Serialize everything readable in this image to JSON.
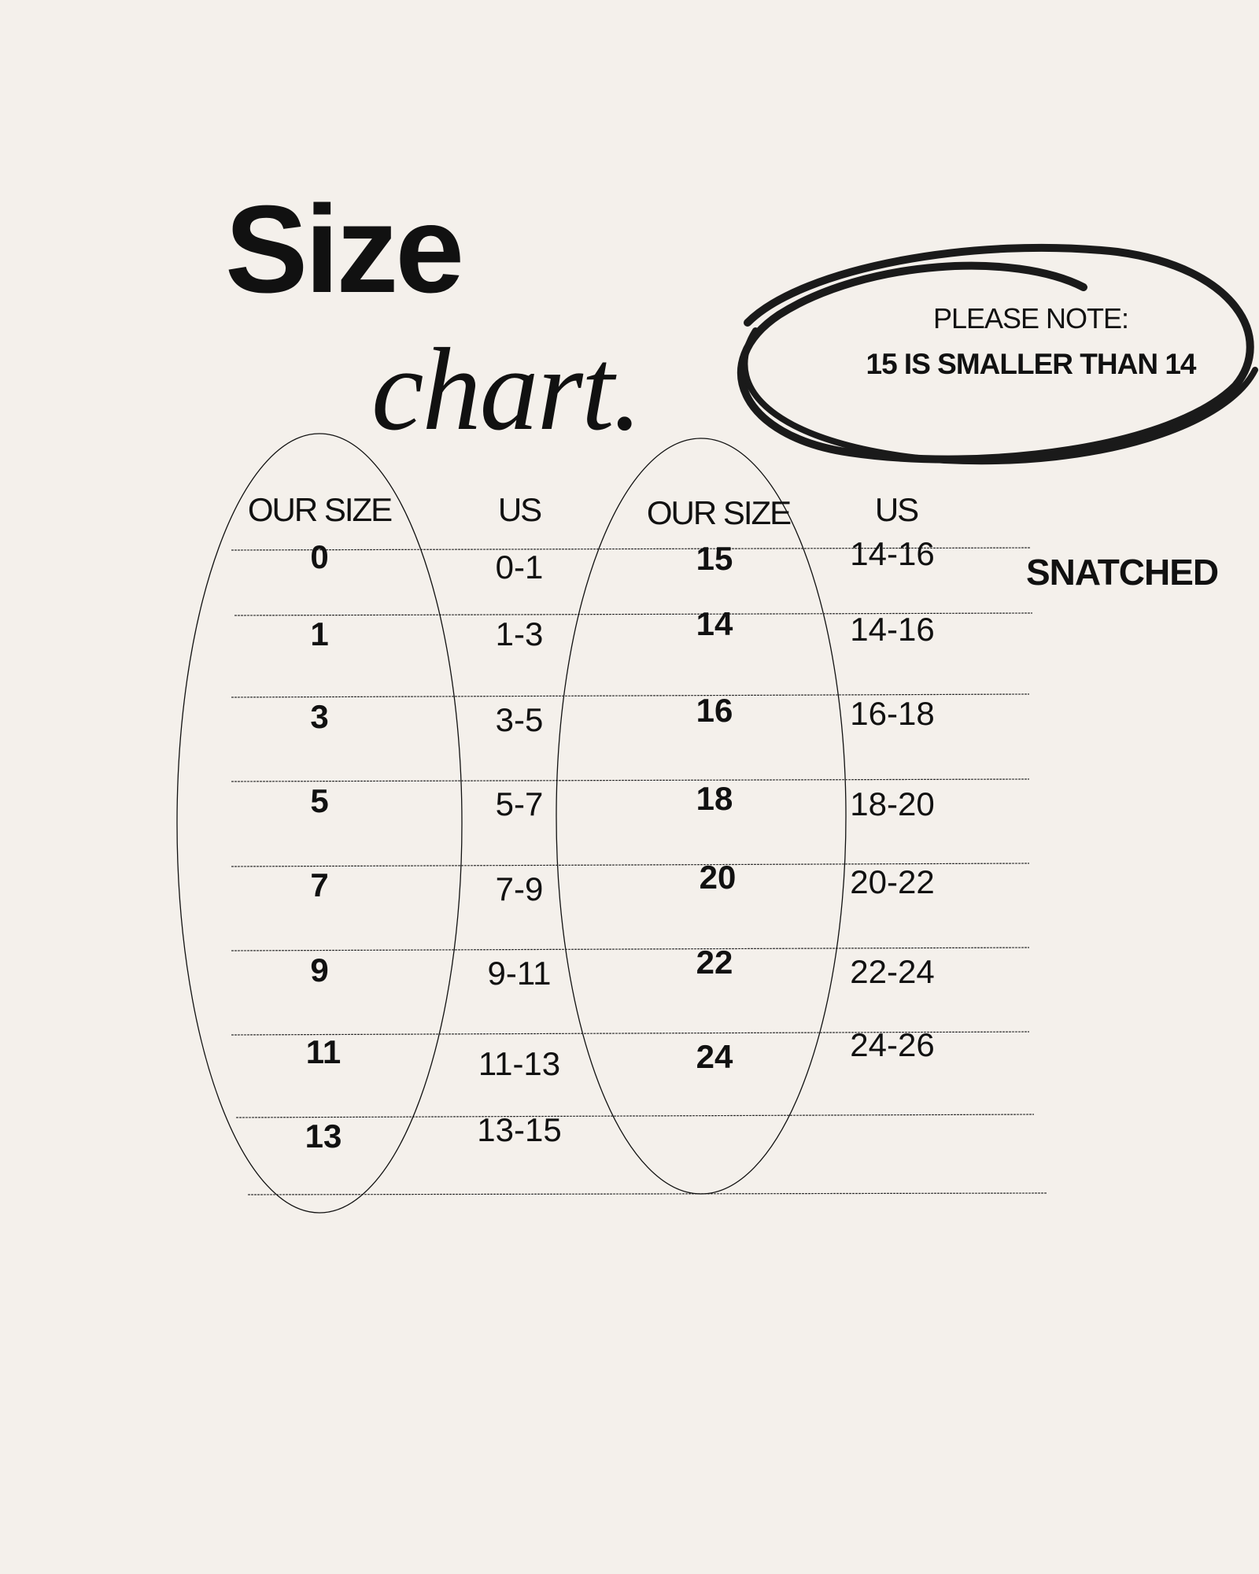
{
  "title": {
    "line1": "Size",
    "line2": "chart."
  },
  "note": {
    "label": "PLEASE NOTE:",
    "text": "15 IS SMALLER THAN 14"
  },
  "headers": [
    "OUR SIZE",
    "US",
    "OUR SIZE",
    "US"
  ],
  "left_table": [
    {
      "our": "0",
      "us": "0-1"
    },
    {
      "our": "1",
      "us": "1-3"
    },
    {
      "our": "3",
      "us": "3-5"
    },
    {
      "our": "5",
      "us": "5-7"
    },
    {
      "our": "7",
      "us": "7-9"
    },
    {
      "our": "9",
      "us": "9-11"
    },
    {
      "our": "11",
      "us": "11-13"
    },
    {
      "our": "13",
      "us": "13-15"
    }
  ],
  "right_table": [
    {
      "our": "15",
      "us": "14-16"
    },
    {
      "our": "14",
      "us": "14-16"
    },
    {
      "our": "16",
      "us": "16-18"
    },
    {
      "our": "18",
      "us": "18-20"
    },
    {
      "our": "20",
      "us": "20-22"
    },
    {
      "our": "22",
      "us": "22-24"
    },
    {
      "our": "24",
      "us": "24-26"
    }
  ],
  "side_label": "SNATCHED",
  "colors": {
    "background": "#f4f0eb",
    "ink": "#111111"
  }
}
